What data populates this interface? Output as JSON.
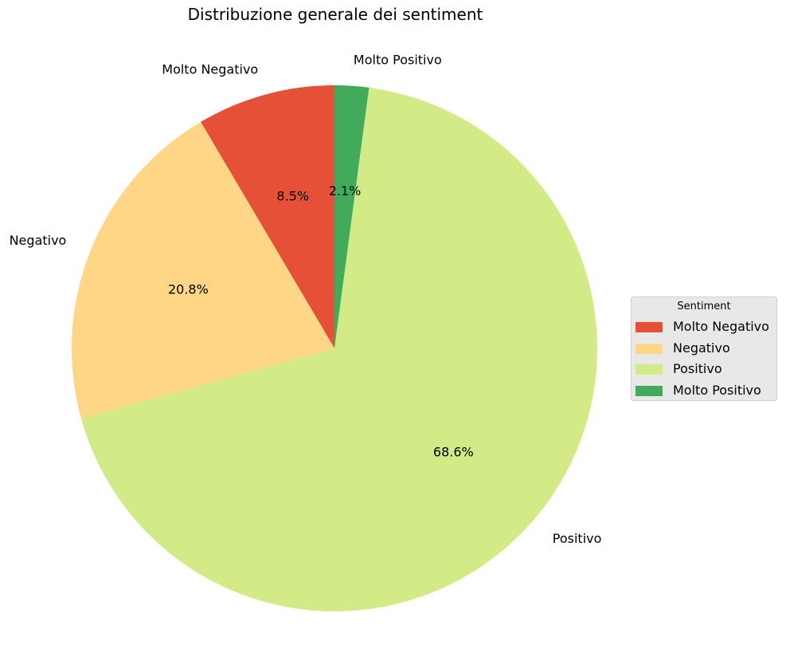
{
  "chart_data": {
    "type": "pie",
    "title": "Distribuzione generale dei sentiment",
    "categories": [
      "Molto Negativo",
      "Negativo",
      "Positivo",
      "Molto Positivo"
    ],
    "values": [
      8.5,
      20.8,
      68.6,
      2.1
    ],
    "value_labels": [
      "8.5%",
      "20.8%",
      "68.6%",
      "2.1%"
    ],
    "colors": [
      "#e65037",
      "#fed686",
      "#d3eb87",
      "#41aa5b"
    ],
    "start_angle": "top",
    "direction": "counterclockwise",
    "legend": {
      "title": "Sentiment",
      "placement": "right",
      "entries": [
        "Molto Negativo",
        "Negativo",
        "Positivo",
        "Molto Positivo"
      ]
    }
  }
}
